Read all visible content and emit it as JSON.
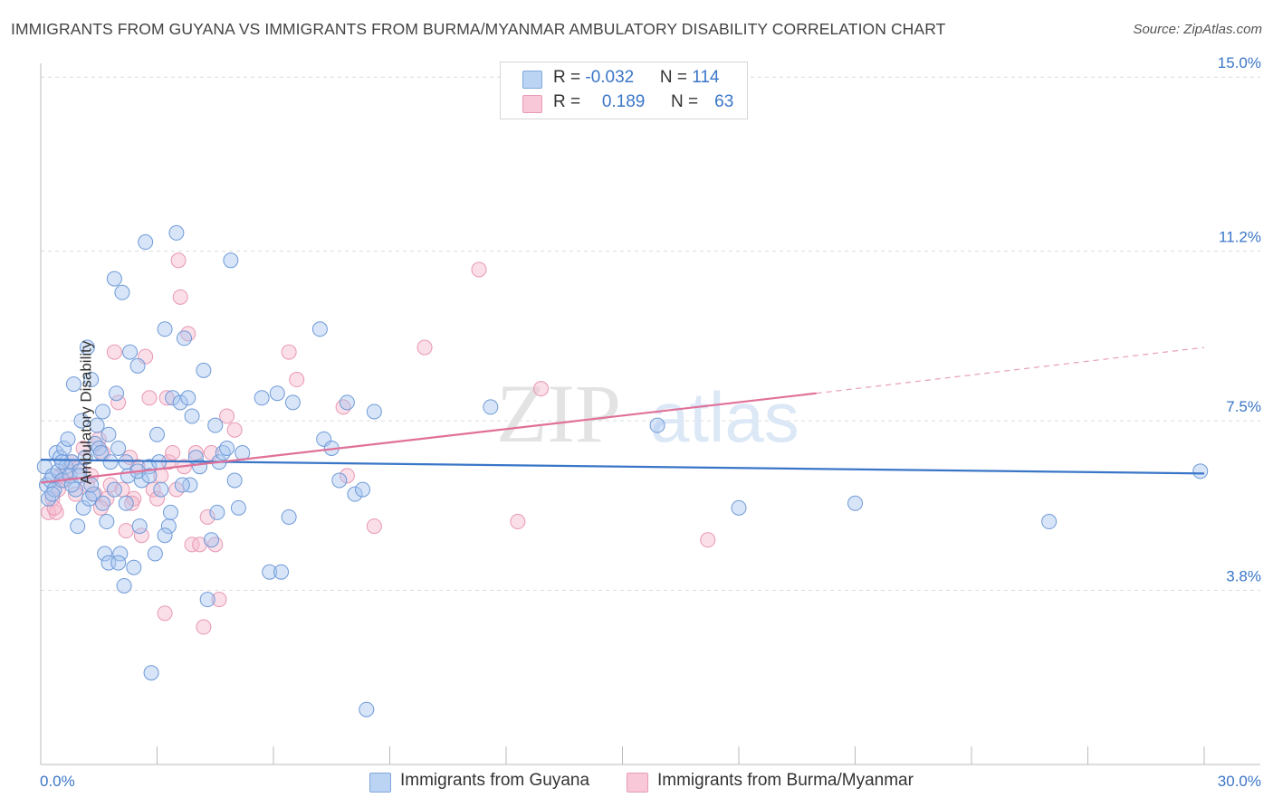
{
  "title": "IMMIGRANTS FROM GUYANA VS IMMIGRANTS FROM BURMA/MYANMAR AMBULATORY DISABILITY CORRELATION CHART",
  "source": "Source: ZipAtlas.com",
  "colors": {
    "blue": "#3a76c8",
    "blue_fill": "#a8c6ef",
    "pink": "#e07099",
    "pink_fill": "#f5b9cd",
    "grid": "#dcdcdc",
    "axis_text": "#3a76c8"
  },
  "legend": {
    "rows": [
      {
        "r_label": "R = ",
        "r_value": "-0.032",
        "n_label": "N = ",
        "n_value": "114",
        "series": "guyana"
      },
      {
        "r_label": "R = ",
        "r_value": "0.189",
        "n_label": "N = ",
        "n_value": "63",
        "series": "burma"
      }
    ]
  },
  "watermark": {
    "zip": "ZIP",
    "atlas": "atlas"
  },
  "chart_data": {
    "type": "scatter",
    "title": "IMMIGRANTS FROM GUYANA VS IMMIGRANTS FROM BURMA/MYANMAR AMBULATORY DISABILITY CORRELATION CHART",
    "xlabel": "",
    "ylabel": "Ambulatory Disability",
    "xlim": [
      0,
      30
    ],
    "ylim": [
      0,
      15.3
    ],
    "x_tick_labels": [
      "0.0%",
      "30.0%"
    ],
    "y_ticks": [
      3.8,
      7.5,
      11.2,
      15.0
    ],
    "y_tick_labels": [
      "3.8%",
      "7.5%",
      "11.2%",
      "15.0%"
    ],
    "series": [
      {
        "name": "Immigrants from Guyana",
        "key": "guyana",
        "trend": {
          "x": [
            0,
            30
          ],
          "y": [
            6.65,
            6.35
          ]
        },
        "points": [
          [
            0.1,
            6.5
          ],
          [
            0.15,
            6.1
          ],
          [
            0.2,
            5.8
          ],
          [
            0.25,
            6.2
          ],
          [
            0.3,
            6.3
          ],
          [
            0.35,
            6.0
          ],
          [
            0.4,
            6.8
          ],
          [
            0.45,
            6.4
          ],
          [
            0.5,
            6.7
          ],
          [
            0.55,
            6.2
          ],
          [
            0.6,
            6.9
          ],
          [
            0.65,
            6.5
          ],
          [
            0.7,
            7.1
          ],
          [
            0.75,
            6.3
          ],
          [
            0.8,
            6.6
          ],
          [
            0.85,
            8.3
          ],
          [
            0.9,
            6.0
          ],
          [
            0.95,
            5.2
          ],
          [
            1.0,
            6.4
          ],
          [
            1.05,
            7.5
          ],
          [
            1.1,
            5.6
          ],
          [
            1.15,
            6.7
          ],
          [
            1.2,
            9.1
          ],
          [
            1.25,
            5.8
          ],
          [
            1.3,
            8.4
          ],
          [
            1.35,
            5.9
          ],
          [
            1.4,
            7.0
          ],
          [
            1.45,
            7.4
          ],
          [
            1.5,
            6.9
          ],
          [
            1.55,
            6.8
          ],
          [
            1.6,
            7.7
          ],
          [
            1.65,
            4.6
          ],
          [
            1.7,
            5.3
          ],
          [
            1.75,
            7.2
          ],
          [
            1.8,
            6.6
          ],
          [
            1.9,
            10.6
          ],
          [
            1.95,
            8.1
          ],
          [
            2.0,
            6.9
          ],
          [
            2.05,
            4.6
          ],
          [
            2.1,
            10.3
          ],
          [
            2.15,
            3.9
          ],
          [
            2.2,
            5.7
          ],
          [
            2.25,
            6.3
          ],
          [
            2.3,
            9.0
          ],
          [
            2.4,
            4.3
          ],
          [
            2.5,
            8.7
          ],
          [
            2.55,
            5.2
          ],
          [
            2.6,
            6.2
          ],
          [
            2.7,
            11.4
          ],
          [
            2.8,
            6.5
          ],
          [
            2.85,
            2.0
          ],
          [
            2.95,
            4.6
          ],
          [
            3.0,
            7.2
          ],
          [
            3.1,
            6.0
          ],
          [
            3.2,
            9.5
          ],
          [
            3.3,
            5.2
          ],
          [
            3.4,
            8.0
          ],
          [
            3.5,
            11.6
          ],
          [
            3.6,
            7.9
          ],
          [
            3.7,
            9.3
          ],
          [
            3.8,
            8.0
          ],
          [
            3.85,
            6.1
          ],
          [
            3.9,
            7.6
          ],
          [
            4.0,
            6.7
          ],
          [
            4.1,
            6.5
          ],
          [
            4.2,
            8.6
          ],
          [
            4.3,
            3.6
          ],
          [
            4.4,
            4.9
          ],
          [
            4.5,
            7.4
          ],
          [
            4.6,
            6.6
          ],
          [
            4.7,
            6.8
          ],
          [
            4.8,
            6.9
          ],
          [
            4.9,
            11.0
          ],
          [
            5.0,
            6.2
          ],
          [
            5.1,
            5.6
          ],
          [
            5.2,
            6.8
          ],
          [
            5.7,
            8.0
          ],
          [
            5.9,
            4.2
          ],
          [
            6.1,
            8.1
          ],
          [
            6.2,
            4.2
          ],
          [
            6.4,
            5.4
          ],
          [
            6.5,
            7.9
          ],
          [
            7.2,
            9.5
          ],
          [
            7.3,
            7.1
          ],
          [
            7.5,
            6.9
          ],
          [
            7.7,
            6.2
          ],
          [
            7.9,
            7.9
          ],
          [
            8.1,
            5.9
          ],
          [
            8.3,
            6.0
          ],
          [
            8.4,
            1.2
          ],
          [
            8.6,
            7.7
          ],
          [
            11.6,
            7.8
          ],
          [
            15.9,
            7.4
          ],
          [
            18.0,
            5.6
          ],
          [
            21.0,
            5.7
          ],
          [
            26.0,
            5.3
          ],
          [
            29.9,
            6.4
          ],
          [
            0.3,
            5.9
          ],
          [
            0.55,
            6.6
          ],
          [
            0.8,
            6.1
          ],
          [
            1.0,
            6.3
          ],
          [
            1.3,
            6.1
          ],
          [
            1.6,
            5.7
          ],
          [
            1.9,
            6.0
          ],
          [
            2.2,
            6.6
          ],
          [
            2.5,
            6.4
          ],
          [
            2.8,
            6.3
          ],
          [
            3.05,
            6.6
          ],
          [
            3.35,
            5.5
          ],
          [
            3.65,
            6.1
          ],
          [
            1.75,
            4.4
          ],
          [
            2.0,
            4.4
          ],
          [
            3.2,
            5.0
          ],
          [
            4.55,
            5.5
          ]
        ]
      },
      {
        "name": "Immigrants from Burma/Myanmar",
        "key": "burma",
        "trend": {
          "x": [
            0,
            20
          ],
          "y": [
            6.15,
            8.1
          ],
          "dashed_to": {
            "x": 30,
            "y": 9.1
          }
        },
        "points": [
          [
            0.2,
            5.5
          ],
          [
            0.3,
            5.8
          ],
          [
            0.4,
            5.5
          ],
          [
            0.5,
            6.3
          ],
          [
            0.6,
            6.2
          ],
          [
            0.7,
            6.4
          ],
          [
            0.8,
            6.6
          ],
          [
            0.9,
            5.9
          ],
          [
            1.0,
            6.5
          ],
          [
            1.1,
            6.9
          ],
          [
            1.2,
            6.1
          ],
          [
            1.3,
            6.3
          ],
          [
            1.4,
            5.9
          ],
          [
            1.5,
            7.1
          ],
          [
            1.6,
            6.8
          ],
          [
            1.7,
            5.8
          ],
          [
            1.8,
            6.1
          ],
          [
            1.9,
            9.0
          ],
          [
            2.0,
            7.9
          ],
          [
            2.1,
            6.0
          ],
          [
            2.2,
            5.1
          ],
          [
            2.3,
            6.7
          ],
          [
            2.4,
            5.8
          ],
          [
            2.5,
            6.5
          ],
          [
            2.6,
            5.0
          ],
          [
            2.7,
            8.9
          ],
          [
            2.8,
            8.0
          ],
          [
            2.9,
            6.0
          ],
          [
            3.0,
            5.8
          ],
          [
            3.1,
            6.3
          ],
          [
            3.2,
            3.3
          ],
          [
            3.3,
            6.6
          ],
          [
            3.4,
            6.8
          ],
          [
            3.5,
            6.0
          ],
          [
            3.6,
            10.2
          ],
          [
            3.7,
            6.5
          ],
          [
            3.8,
            9.4
          ],
          [
            3.9,
            4.8
          ],
          [
            4.0,
            6.8
          ],
          [
            4.1,
            4.8
          ],
          [
            4.2,
            3.0
          ],
          [
            4.3,
            5.4
          ],
          [
            4.4,
            6.8
          ],
          [
            4.5,
            4.8
          ],
          [
            4.6,
            3.6
          ],
          [
            4.8,
            7.6
          ],
          [
            5.0,
            7.3
          ],
          [
            6.4,
            9.0
          ],
          [
            6.6,
            8.4
          ],
          [
            7.8,
            7.8
          ],
          [
            7.9,
            6.3
          ],
          [
            8.6,
            5.2
          ],
          [
            9.9,
            9.1
          ],
          [
            11.3,
            10.8
          ],
          [
            12.3,
            5.3
          ],
          [
            12.9,
            8.2
          ],
          [
            17.2,
            4.9
          ],
          [
            3.55,
            11.0
          ],
          [
            0.35,
            5.6
          ],
          [
            0.45,
            6.0
          ],
          [
            1.55,
            5.6
          ],
          [
            2.35,
            5.7
          ],
          [
            3.25,
            8.0
          ]
        ]
      }
    ]
  }
}
